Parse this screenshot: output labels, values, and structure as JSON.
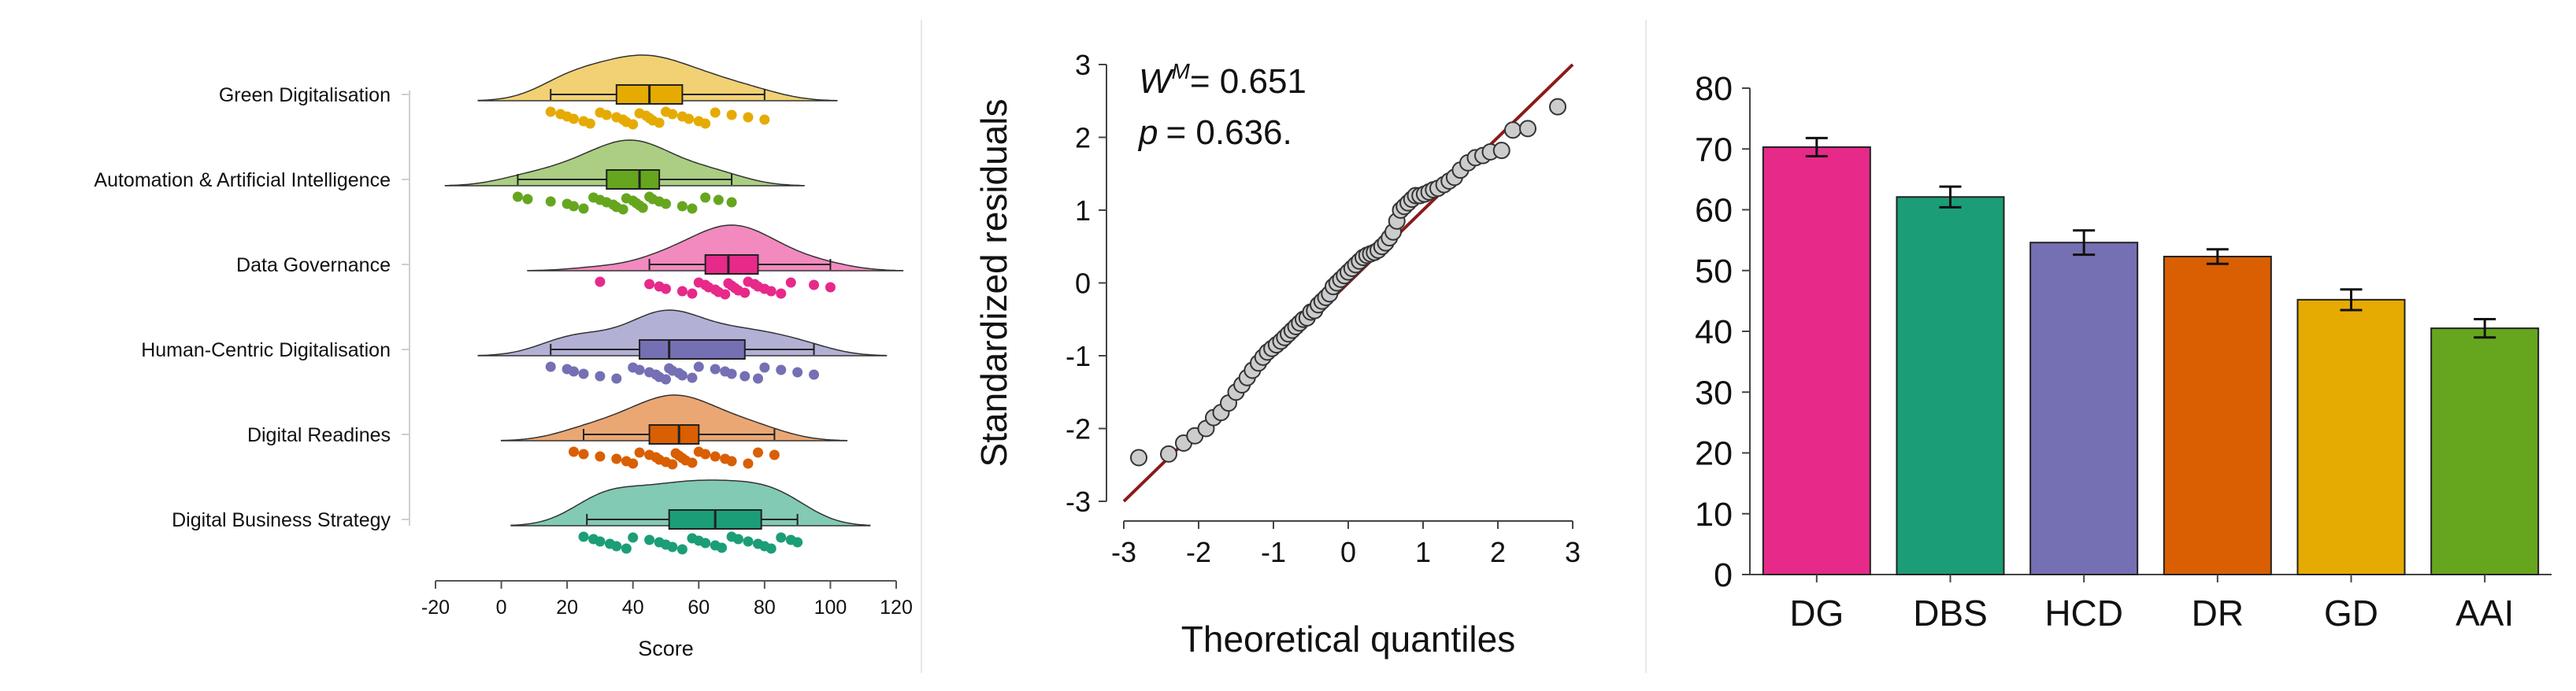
{
  "chart_data": [
    {
      "type": "raincloud",
      "xlabel": "Score",
      "xlim": [
        -20,
        120
      ],
      "xticks": [
        -20,
        0,
        20,
        40,
        60,
        80,
        100,
        120
      ],
      "grid": false,
      "categories": [
        {
          "name": "Green Digitalisation",
          "color": "#E6AB02",
          "box": {
            "q1": 35,
            "median": 45,
            "q3": 55,
            "whisker_low": 15,
            "whisker_high": 80
          },
          "points": [
            15,
            18,
            20,
            22,
            25,
            27,
            30,
            32,
            35,
            37,
            38,
            40,
            42,
            44,
            45,
            46,
            48,
            50,
            52,
            55,
            57,
            60,
            62,
            65,
            70,
            75,
            80
          ]
        },
        {
          "name": "Automation & Artificial Intelligence",
          "color": "#66A61E",
          "box": {
            "q1": 32,
            "median": 42,
            "q3": 48,
            "whisker_low": 5,
            "whisker_high": 70
          },
          "points": [
            5,
            8,
            15,
            20,
            22,
            25,
            28,
            30,
            32,
            34,
            35,
            37,
            38,
            40,
            41,
            42,
            43,
            45,
            46,
            48,
            50,
            55,
            58,
            62,
            66,
            70
          ]
        },
        {
          "name": "Data Governance",
          "color": "#E7298A",
          "box": {
            "q1": 62,
            "median": 69,
            "q3": 78,
            "whisker_low": 45,
            "whisker_high": 100
          },
          "points": [
            30,
            45,
            48,
            50,
            55,
            58,
            60,
            62,
            63,
            65,
            66,
            68,
            69,
            70,
            71,
            72,
            74,
            75,
            77,
            78,
            80,
            82,
            85,
            88,
            95,
            100
          ]
        },
        {
          "name": "Human-Centric Digitalisation",
          "color": "#7570B3",
          "box": {
            "q1": 42,
            "median": 51,
            "q3": 74,
            "whisker_low": 15,
            "whisker_high": 95
          },
          "points": [
            15,
            20,
            22,
            25,
            30,
            35,
            40,
            42,
            45,
            47,
            48,
            50,
            51,
            52,
            54,
            55,
            58,
            60,
            65,
            68,
            70,
            74,
            78,
            80,
            85,
            90,
            95
          ]
        },
        {
          "name": "Digital Readines",
          "color": "#D95F02",
          "box": {
            "q1": 45,
            "median": 54,
            "q3": 60,
            "whisker_low": 25,
            "whisker_high": 83
          },
          "points": [
            22,
            25,
            30,
            35,
            38,
            40,
            42,
            45,
            47,
            48,
            50,
            52,
            53,
            54,
            55,
            56,
            58,
            60,
            62,
            65,
            68,
            70,
            75,
            78,
            83
          ]
        },
        {
          "name": "Digital Business Strategy",
          "color": "#1B9E77",
          "box": {
            "q1": 51,
            "median": 65,
            "q3": 79,
            "whisker_low": 26,
            "whisker_high": 90
          },
          "points": [
            25,
            28,
            30,
            33,
            35,
            38,
            40,
            45,
            48,
            50,
            52,
            55,
            58,
            60,
            62,
            65,
            67,
            70,
            72,
            75,
            78,
            80,
            82,
            85,
            88,
            90
          ]
        }
      ]
    },
    {
      "type": "scatter",
      "xlabel": "Theoretical quantiles",
      "ylabel": "Standardized residuals",
      "xlim": [
        -3,
        3
      ],
      "ylim": [
        -3,
        3
      ],
      "xticks": [
        -3,
        -2,
        -1,
        0,
        1,
        2,
        3
      ],
      "yticks": [
        -3,
        -2,
        -1,
        0,
        1,
        2,
        3
      ],
      "grid": false,
      "annotations": {
        "w_symbol": "W",
        "w_superscript": "M",
        "w_text": "= 0.651",
        "p_symbol": "p",
        "p_text": "= 0.636."
      },
      "reference_line": {
        "from": [
          -3,
          -3
        ],
        "to": [
          3,
          3
        ],
        "color": "#8B1A1A"
      },
      "point_color": "#CCCCCC",
      "points": {
        "x": [
          -2.8,
          -2.4,
          -2.2,
          -2.05,
          -1.9,
          -1.8,
          -1.7,
          -1.6,
          -1.5,
          -1.42,
          -1.35,
          -1.28,
          -1.2,
          -1.14,
          -1.08,
          -1.02,
          -0.96,
          -0.9,
          -0.85,
          -0.8,
          -0.75,
          -0.7,
          -0.65,
          -0.6,
          -0.55,
          -0.5,
          -0.45,
          -0.4,
          -0.35,
          -0.3,
          -0.25,
          -0.2,
          -0.15,
          -0.1,
          -0.05,
          0.0,
          0.05,
          0.1,
          0.15,
          0.2,
          0.25,
          0.3,
          0.35,
          0.4,
          0.45,
          0.5,
          0.55,
          0.6,
          0.65,
          0.7,
          0.75,
          0.8,
          0.85,
          0.9,
          0.96,
          1.02,
          1.08,
          1.14,
          1.2,
          1.28,
          1.35,
          1.42,
          1.5,
          1.6,
          1.7,
          1.8,
          1.9,
          2.05,
          2.2,
          2.4,
          2.8
        ],
        "y": [
          -2.4,
          -2.35,
          -2.2,
          -2.1,
          -2.0,
          -1.85,
          -1.78,
          -1.65,
          -1.5,
          -1.4,
          -1.3,
          -1.2,
          -1.1,
          -1.02,
          -0.95,
          -0.9,
          -0.85,
          -0.8,
          -0.75,
          -0.7,
          -0.65,
          -0.6,
          -0.55,
          -0.5,
          -0.48,
          -0.4,
          -0.38,
          -0.3,
          -0.25,
          -0.2,
          -0.15,
          -0.05,
          0.0,
          0.05,
          0.1,
          0.15,
          0.2,
          0.25,
          0.3,
          0.35,
          0.38,
          0.4,
          0.42,
          0.45,
          0.5,
          0.55,
          0.62,
          0.7,
          0.85,
          1.0,
          1.05,
          1.1,
          1.15,
          1.2,
          1.2,
          1.22,
          1.25,
          1.28,
          1.3,
          1.35,
          1.4,
          1.45,
          1.55,
          1.65,
          1.72,
          1.75,
          1.8,
          1.82,
          2.1,
          2.12,
          2.42
        ]
      }
    },
    {
      "type": "bar",
      "categories": [
        "DG",
        "DBS",
        "HCD",
        "DR",
        "GD",
        "AAI"
      ],
      "values": [
        70.3,
        62.1,
        54.6,
        52.3,
        45.2,
        40.5
      ],
      "errors": [
        1.5,
        1.7,
        2.0,
        1.2,
        1.7,
        1.5
      ],
      "colors": [
        "#E7298A",
        "#1B9E77",
        "#7570B3",
        "#D95F02",
        "#E6AB02",
        "#66A61E"
      ],
      "ylim": [
        0,
        80
      ],
      "yticks": [
        0,
        10,
        20,
        30,
        40,
        50,
        60,
        70,
        80
      ],
      "xlabel": "",
      "ylabel": "",
      "grid": false
    }
  ]
}
